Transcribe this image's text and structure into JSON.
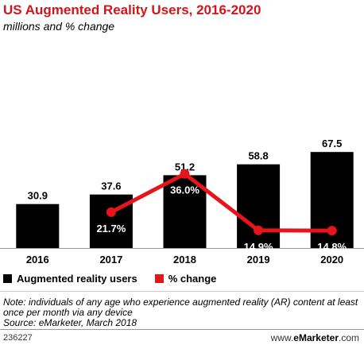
{
  "header": {
    "title": "US Augmented Reality Users, 2016-2020",
    "subtitle": "millions and % change"
  },
  "legend": {
    "users_label": "Augmented reality users",
    "change_label": "% change"
  },
  "notes": {
    "note": "Note: individuals of any age who experience augmented reality (AR) content at least once per month via any device",
    "source": "Source: eMarketer, March 2018"
  },
  "footer": {
    "chart_id": "236227",
    "brand_prefix": "www.",
    "brand_name": "eMarketer",
    "brand_suffix": ".com"
  },
  "colors": {
    "bars": "#000000",
    "line": "#e8141b",
    "title": "#d3151a"
  },
  "chart_data": {
    "type": "bar",
    "categories": [
      "2016",
      "2017",
      "2018",
      "2019",
      "2020"
    ],
    "series": [
      {
        "name": "Augmented reality users",
        "type": "bar",
        "values": [
          30.9,
          37.6,
          51.2,
          58.8,
          67.5
        ],
        "labels": [
          "30.9",
          "37.6",
          "51.2",
          "58.8",
          "67.5"
        ]
      },
      {
        "name": "% change",
        "type": "line",
        "values": [
          null,
          21.7,
          36.0,
          14.9,
          14.8
        ],
        "labels": [
          "",
          "21.7%",
          "36.0%",
          "14.9%",
          "14.8%"
        ]
      }
    ],
    "title": "US Augmented Reality Users, 2016-2020",
    "subtitle": "millions and % change"
  }
}
